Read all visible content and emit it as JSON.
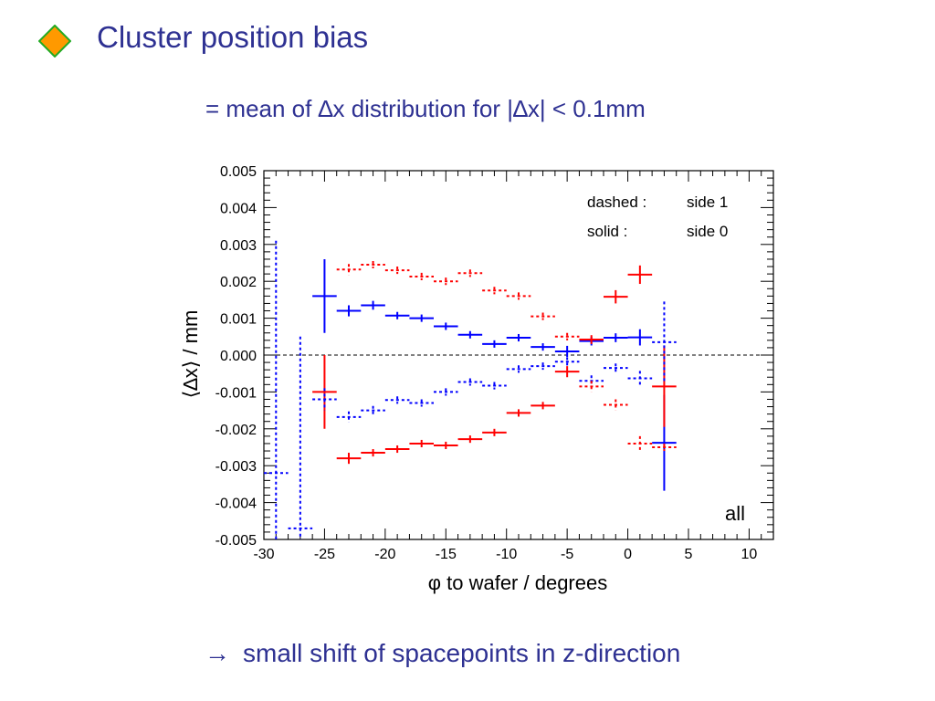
{
  "slide": {
    "title": "Cluster position bias",
    "subtitle": "= mean of ∆x distribution for |∆x| < 0.1mm",
    "conclusion_arrow": "→",
    "conclusion": "small shift of spacepoints in z-direction",
    "bullet_icon": "diamond-bullet-icon",
    "colors": {
      "text": "#2e3192",
      "bullet_fill": "#ff9900",
      "bullet_border": "#22aa22"
    }
  },
  "chart_data": {
    "type": "scatter",
    "xlabel": "φ to wafer / degrees",
    "ylabel": "⟨∆x⟩ / mm",
    "xlim": [
      -30,
      12
    ],
    "ylim": [
      -0.005,
      0.005
    ],
    "xticks": [
      "-30",
      "-25",
      "-20",
      "-15",
      "-10",
      "-5",
      "0",
      "5",
      "10"
    ],
    "yticks": [
      "-0.005",
      "-0.004",
      "-0.003",
      "-0.002",
      "-0.001",
      "0.000",
      "0.001",
      "0.002",
      "0.003",
      "0.004",
      "0.005"
    ],
    "legend": [
      {
        "key": "dashed :",
        "value": "side 1"
      },
      {
        "key": "solid :",
        "value": "side 0"
      }
    ],
    "legend_position": "top-right",
    "panel_label": "all",
    "reference_line": {
      "y": 0,
      "style": "dashed"
    },
    "grid": false,
    "series": [
      {
        "color": "#0000ff",
        "style": "solid",
        "xerr": 1,
        "points": [
          {
            "x": -25,
            "y": 0.0016,
            "yerr": 0.001
          },
          {
            "x": -23,
            "y": 0.0012,
            "yerr": 0.00015
          },
          {
            "x": -21,
            "y": 0.00135,
            "yerr": 0.00012
          },
          {
            "x": -19,
            "y": 0.00107,
            "yerr": 0.0001
          },
          {
            "x": -17,
            "y": 0.001,
            "yerr": 0.0001
          },
          {
            "x": -15,
            "y": 0.00078,
            "yerr": 0.0001
          },
          {
            "x": -13,
            "y": 0.00055,
            "yerr": 0.0001
          },
          {
            "x": -11,
            "y": 0.0003,
            "yerr": 0.0001
          },
          {
            "x": -9,
            "y": 0.00047,
            "yerr": 0.0001
          },
          {
            "x": -7,
            "y": 0.00022,
            "yerr": 0.0001
          },
          {
            "x": -5,
            "y": 0.0001,
            "yerr": 0.00015
          },
          {
            "x": -3,
            "y": 0.00038,
            "yerr": 0.00012
          },
          {
            "x": -1,
            "y": 0.00047,
            "yerr": 0.00012
          },
          {
            "x": 1,
            "y": 0.00048,
            "yerr": 0.00022
          },
          {
            "x": 3,
            "y": -0.00238,
            "yerr": 0.0013
          }
        ]
      },
      {
        "color": "#ff0000",
        "style": "solid",
        "xerr": 1,
        "points": [
          {
            "x": -25,
            "y": -0.001,
            "yerr": 0.001
          },
          {
            "x": -23,
            "y": -0.0028,
            "yerr": 0.00015
          },
          {
            "x": -21,
            "y": -0.00265,
            "yerr": 0.0001
          },
          {
            "x": -19,
            "y": -0.00255,
            "yerr": 0.0001
          },
          {
            "x": -17,
            "y": -0.0024,
            "yerr": 0.0001
          },
          {
            "x": -15,
            "y": -0.00245,
            "yerr": 0.0001
          },
          {
            "x": -13,
            "y": -0.00228,
            "yerr": 0.0001
          },
          {
            "x": -11,
            "y": -0.0021,
            "yerr": 0.0001
          },
          {
            "x": -9,
            "y": -0.00157,
            "yerr": 0.0001
          },
          {
            "x": -7,
            "y": -0.00137,
            "yerr": 0.0001
          },
          {
            "x": -5,
            "y": -0.00045,
            "yerr": 0.00015
          },
          {
            "x": -3,
            "y": 0.00042,
            "yerr": 0.00012
          },
          {
            "x": -1,
            "y": 0.00158,
            "yerr": 0.00018
          },
          {
            "x": 1,
            "y": 0.00218,
            "yerr": 0.00025
          },
          {
            "x": 3,
            "y": -0.00085,
            "yerr": 0.0011
          }
        ]
      },
      {
        "color": "#0000ff",
        "style": "dashed",
        "xerr": 1,
        "points": [
          {
            "x": -29,
            "y": -0.0032,
            "yerr": 0.0063
          },
          {
            "x": -27,
            "y": -0.0047,
            "yerr": 0.0052
          },
          {
            "x": -25,
            "y": -0.0012,
            "yerr": 0.0003
          },
          {
            "x": -23,
            "y": -0.00168,
            "yerr": 0.00015
          },
          {
            "x": -21,
            "y": -0.0015,
            "yerr": 0.00012
          },
          {
            "x": -19,
            "y": -0.00122,
            "yerr": 0.0001
          },
          {
            "x": -17,
            "y": -0.0013,
            "yerr": 0.0001
          },
          {
            "x": -15,
            "y": -0.001,
            "yerr": 0.0001
          },
          {
            "x": -13,
            "y": -0.00073,
            "yerr": 0.0001
          },
          {
            "x": -11,
            "y": -0.00083,
            "yerr": 0.0001
          },
          {
            "x": -9,
            "y": -0.00038,
            "yerr": 0.0001
          },
          {
            "x": -7,
            "y": -0.0003,
            "yerr": 0.0001
          },
          {
            "x": -5,
            "y": -0.00018,
            "yerr": 0.00012
          },
          {
            "x": -3,
            "y": -0.0007,
            "yerr": 0.00015
          },
          {
            "x": -1,
            "y": -0.00035,
            "yerr": 0.00012
          },
          {
            "x": 1,
            "y": -0.00063,
            "yerr": 0.0002
          },
          {
            "x": 3,
            "y": 0.00035,
            "yerr": 0.0011
          }
        ]
      },
      {
        "color": "#ff0000",
        "style": "dashed",
        "xerr": 1,
        "points": [
          {
            "x": -23,
            "y": 0.00232,
            "yerr": 0.00015
          },
          {
            "x": -21,
            "y": 0.00245,
            "yerr": 0.0001
          },
          {
            "x": -19,
            "y": 0.0023,
            "yerr": 0.0001
          },
          {
            "x": -17,
            "y": 0.00213,
            "yerr": 0.0001
          },
          {
            "x": -15,
            "y": 0.002,
            "yerr": 0.0001
          },
          {
            "x": -13,
            "y": 0.00222,
            "yerr": 0.0001
          },
          {
            "x": -11,
            "y": 0.00175,
            "yerr": 0.0001
          },
          {
            "x": -9,
            "y": 0.0016,
            "yerr": 0.0001
          },
          {
            "x": -7,
            "y": 0.00105,
            "yerr": 0.0001
          },
          {
            "x": -5,
            "y": 0.0005,
            "yerr": 0.0001
          },
          {
            "x": -3,
            "y": -0.00085,
            "yerr": 0.00015
          },
          {
            "x": -1,
            "y": -0.00135,
            "yerr": 0.00015
          },
          {
            "x": 1,
            "y": -0.0024,
            "yerr": 0.0002
          },
          {
            "x": 3,
            "y": -0.0025,
            "yerr": 0.0001
          }
        ]
      }
    ]
  }
}
